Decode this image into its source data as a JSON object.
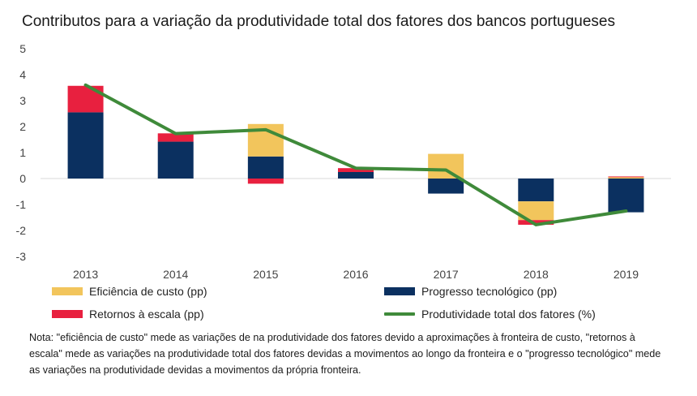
{
  "title": "Contributos para a variação da produtividade total dos fatores dos bancos portugueses",
  "note": "Nota: \"eficiência de  custo\" mede as variações de na produtividade dos fatores devido a aproximações à fronteira de custo, \"retornos à escala\" mede as variações na produtividade total dos fatores devidas a movimentos ao longo da fronteira e o \"progresso tecnológico\" mede as variações na produtividade devidas a movimentos da própria fronteira.",
  "colors": {
    "eficiencia": "#F2C55C",
    "progresso": "#0B3060",
    "retornos": "#E8203F",
    "produtividade": "#3F8A3A",
    "axis": "#d9d9d9",
    "text": "#444444"
  },
  "legend": {
    "eficiencia": "Eficiência de custo (pp)",
    "progresso": "Progresso tecnológico (pp)",
    "retornos": "Retornos à escala (pp)",
    "produtividade": "Produtividade total dos fatores (%)"
  },
  "chart_data": {
    "type": "bar",
    "stacked": true,
    "title": "Contributos para a variação da produtividade total dos fatores dos bancos portugueses",
    "categories": [
      "2013",
      "2014",
      "2015",
      "2016",
      "2017",
      "2018",
      "2019"
    ],
    "ylim": [
      -3,
      5
    ],
    "yticks": [
      5,
      4,
      3,
      2,
      1,
      0,
      -1,
      -2,
      -3
    ],
    "ytick_labels": [
      "5",
      "4",
      "3",
      "2",
      "1",
      "0",
      "-1",
      "-2",
      "-3"
    ],
    "grid": false,
    "legend_position": "bottom",
    "series": [
      {
        "name": "Eficiência de custo (pp)",
        "type": "bar",
        "values": [
          0,
          0,
          1.25,
          0,
          0.95,
          -0.72,
          0.05
        ]
      },
      {
        "name": "Progresso tecnológico (pp)",
        "type": "bar",
        "values": [
          2.55,
          1.42,
          0.85,
          0.25,
          -0.58,
          -0.88,
          -1.3
        ]
      },
      {
        "name": "Retornos à escala (pp)",
        "type": "bar",
        "values": [
          1.02,
          0.32,
          -0.2,
          0.15,
          0,
          -0.18,
          0.03
        ]
      },
      {
        "name": "Produtividade total dos fatores (%)",
        "type": "line",
        "values": [
          3.6,
          1.73,
          1.88,
          0.4,
          0.33,
          -1.78,
          -1.25
        ]
      }
    ]
  }
}
